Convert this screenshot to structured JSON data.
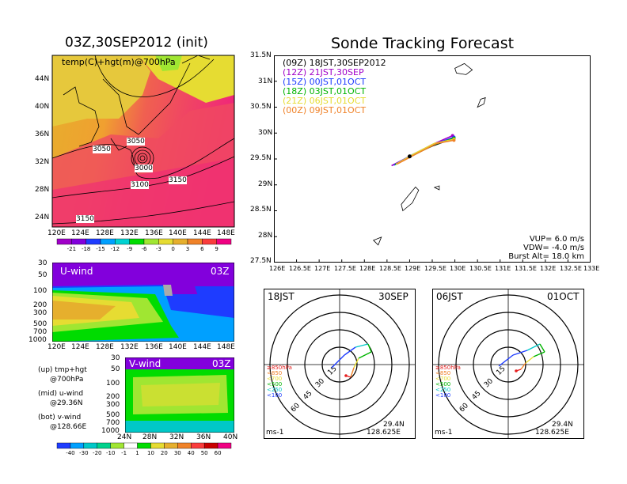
{
  "left": {
    "title": "03Z,30SEP2012 (init)",
    "map_label": "temp(C)+hgt(m)@700hPa",
    "lat_ticks": [
      "44N",
      "40N",
      "36N",
      "32N",
      "28N",
      "24N"
    ],
    "lon_ticks": [
      "120E",
      "124E",
      "128E",
      "132E",
      "136E",
      "140E",
      "144E",
      "148E"
    ],
    "contours": [
      "3050",
      "3050",
      "3000",
      "3100",
      "3150",
      "3150"
    ],
    "temp_scale": [
      "-21",
      "-18",
      "-15",
      "-12",
      "-9",
      "-6",
      "-3",
      "0",
      "3",
      "6",
      "9"
    ],
    "temp_colors": [
      "#a000c8",
      "#8200dc",
      "#1e3cff",
      "#00a0ff",
      "#00d2d2",
      "#00dc00",
      "#a0e632",
      "#e6dc32",
      "#e6af2d",
      "#f08228",
      "#fa3c3c",
      "#f00082"
    ],
    "u_panel": {
      "label": "U-wind",
      "time": "03Z",
      "p_ticks": [
        "30",
        "50",
        "100",
        "200",
        "300",
        "500",
        "700",
        "1000"
      ],
      "lon_ticks": [
        "120E",
        "124E",
        "128E",
        "132E",
        "136E",
        "140E",
        "144E",
        "148E"
      ]
    },
    "v_panel": {
      "label": "V-wind",
      "time": "03Z",
      "p_ticks": [
        "30",
        "50",
        "100",
        "200",
        "300",
        "500",
        "700",
        "1000"
      ],
      "lat_ticks": [
        "24N",
        "28N",
        "32N",
        "36N",
        "40N"
      ]
    },
    "notes": [
      {
        "a": "(up) tmp+hgt",
        "b": "@700hPa"
      },
      {
        "a": "(mid) u-wind",
        "b": "@29.36N"
      },
      {
        "a": "(bot) v-wind",
        "b": "@128.66E"
      }
    ],
    "wind_scale": [
      "-40",
      "-30",
      "-20",
      "-10",
      "-1",
      "1",
      "10",
      "20",
      "30",
      "40",
      "50",
      "60"
    ],
    "wind_colors": [
      "#1e3cff",
      "#00a0ff",
      "#00c8c8",
      "#00d28c",
      "#a0e632",
      "#ffffff",
      "#00dc00",
      "#e6dc32",
      "#e6af2d",
      "#f08228",
      "#fa3c3c",
      "#c80000",
      "#f00082"
    ]
  },
  "right": {
    "title": "Sonde Tracking Forecast",
    "legend": [
      {
        "text": "(09Z) 18JST,30SEP2012",
        "color": "#000000"
      },
      {
        "text": "(12Z) 21JST,30SEP",
        "color": "#a000c8"
      },
      {
        "text": "(15Z) 00JST,01OCT",
        "color": "#1e3cff"
      },
      {
        "text": "(18Z) 03JST,01OCT",
        "color": "#00b400"
      },
      {
        "text": "(21Z) 06JST,01OCT",
        "color": "#e6dc32"
      },
      {
        "text": "(00Z) 09JST,01OCT",
        "color": "#f08228"
      }
    ],
    "lat_ticks": [
      "31.5N",
      "31N",
      "30.5N",
      "30N",
      "29.5N",
      "29N",
      "28.5N",
      "28N",
      "27.5N"
    ],
    "lon_ticks": [
      "126E",
      "126.5E",
      "127E",
      "127.5E",
      "128E",
      "128.5E",
      "129E",
      "129.5E",
      "130E",
      "130.5E",
      "131E",
      "131.5E",
      "132E",
      "132.5E",
      "133E"
    ],
    "vup": "VUP= 6.0 m/s",
    "vdw": "VDW= -4.0 m/s",
    "burst": "Burst Alt= 18.0 km"
  },
  "hodographs": [
    {
      "time": "18JST",
      "date": "30SEP",
      "lat": "29.4N",
      "lon": "128.625E",
      "unit": "ms-1",
      "rings": [
        "15",
        "30",
        "45",
        "60"
      ],
      "levels": [
        "≥850hPa",
        "<850",
        "<700",
        "<500",
        "<250",
        "<100"
      ]
    },
    {
      "time": "06JST",
      "date": "01OCT",
      "lat": "29.4N",
      "lon": "128.625E",
      "unit": "ms-1",
      "rings": [
        "15",
        "30",
        "45",
        "60"
      ],
      "levels": [
        "≥850hPa",
        "<850",
        "<700",
        "<500",
        "<250",
        "<100"
      ]
    }
  ],
  "chart_data": [
    {
      "type": "heatmap",
      "title": "03Z,30SEP2012 (init)",
      "label": "temp(C)+hgt(m)@700hPa",
      "xlim": [
        "120E",
        "148E"
      ],
      "ylim": [
        "22N",
        "46N"
      ],
      "contour_values": [
        3000,
        3050,
        3100,
        3150
      ]
    },
    {
      "type": "line",
      "title": "Sonde Tracking Forecast",
      "xlim": [
        126,
        133
      ],
      "ylim": [
        27.5,
        31.5
      ],
      "series": [
        {
          "name": "(09Z) 18JST,30SEP2012",
          "points": [
            [
              129.0,
              29.55
            ],
            [
              129.5,
              29.75
            ],
            [
              129.98,
              29.9
            ]
          ]
        },
        {
          "name": "(12Z) 21JST,30SEP",
          "points": [
            [
              128.6,
              29.37
            ],
            [
              129.0,
              29.55
            ],
            [
              129.5,
              29.78
            ],
            [
              129.95,
              29.95
            ]
          ]
        },
        {
          "name": "(15Z) 00JST,01OCT",
          "points": [
            [
              128.65,
              29.38
            ],
            [
              129.05,
              29.58
            ],
            [
              129.5,
              29.77
            ],
            [
              129.98,
              29.92
            ]
          ]
        },
        {
          "name": "(18Z) 03JST,01OCT",
          "points": [
            [
              128.68,
              29.39
            ],
            [
              129.1,
              29.58
            ],
            [
              129.55,
              29.78
            ],
            [
              129.98,
              29.9
            ]
          ]
        },
        {
          "name": "(21Z) 06JST,01OCT",
          "points": [
            [
              128.7,
              29.4
            ],
            [
              129.1,
              29.6
            ],
            [
              129.55,
              29.8
            ],
            [
              129.98,
              29.88
            ]
          ]
        },
        {
          "name": "(00Z) 09JST,01OCT",
          "points": [
            [
              128.72,
              29.4
            ],
            [
              129.15,
              29.6
            ],
            [
              129.6,
              29.8
            ],
            [
              129.98,
              29.86
            ]
          ]
        }
      ]
    }
  ]
}
